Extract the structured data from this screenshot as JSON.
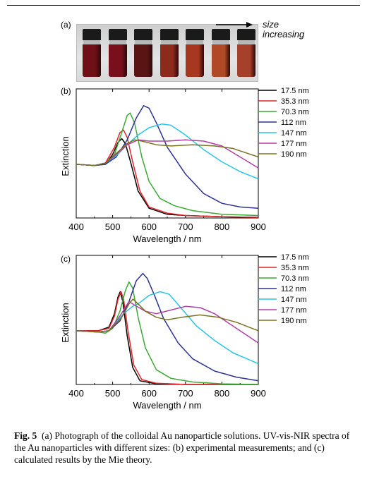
{
  "panels": {
    "a": "(a)",
    "b": "(b)",
    "c": "(c)"
  },
  "photo": {
    "arrow_label_line1": "size",
    "arrow_label_line2": "increasing",
    "vial_colors": [
      "#6e1016",
      "#7a0f1c",
      "#5a1414",
      "#8c2a1c",
      "#a8371f",
      "#b04a26",
      "#a6402a"
    ]
  },
  "caption": {
    "label": "Fig. 5",
    "text": "(a) Photograph of the colloidal Au nanoparticle solutions. UV-vis-NIR spectra of the Au nanoparticles with different sizes: (b) experimental measurements; and (c) calculated results by the Mie theory."
  },
  "chart_data": [
    {
      "type": "line",
      "panel": "b",
      "xlabel": "Wavelength / nm",
      "ylabel": "Extinction",
      "xlim": [
        400,
        900
      ],
      "ylim": [
        0,
        1
      ],
      "xticks": [
        400,
        500,
        600,
        700,
        800,
        900
      ],
      "legend_position": "right",
      "series": [
        {
          "name": "17.5 nm",
          "color": "#000000",
          "points": [
            [
              400,
              0.44
            ],
            [
              450,
              0.43
            ],
            [
              480,
              0.44
            ],
            [
              500,
              0.52
            ],
            [
              515,
              0.62
            ],
            [
              525,
              0.65
            ],
            [
              535,
              0.61
            ],
            [
              550,
              0.45
            ],
            [
              570,
              0.22
            ],
            [
              600,
              0.08
            ],
            [
              650,
              0.03
            ],
            [
              700,
              0.02
            ],
            [
              800,
              0.01
            ],
            [
              900,
              0.005
            ]
          ]
        },
        {
          "name": "35.3 nm",
          "color": "#e3242b",
          "points": [
            [
              400,
              0.44
            ],
            [
              450,
              0.43
            ],
            [
              480,
              0.45
            ],
            [
              505,
              0.58
            ],
            [
              520,
              0.7
            ],
            [
              530,
              0.72
            ],
            [
              540,
              0.66
            ],
            [
              555,
              0.46
            ],
            [
              575,
              0.22
            ],
            [
              600,
              0.09
            ],
            [
              650,
              0.04
            ],
            [
              700,
              0.02
            ],
            [
              800,
              0.01
            ],
            [
              900,
              0.005
            ]
          ]
        },
        {
          "name": "70.3 nm",
          "color": "#3aaa35",
          "points": [
            [
              400,
              0.44
            ],
            [
              450,
              0.43
            ],
            [
              480,
              0.44
            ],
            [
              505,
              0.52
            ],
            [
              525,
              0.7
            ],
            [
              540,
              0.84
            ],
            [
              548,
              0.86
            ],
            [
              560,
              0.78
            ],
            [
              580,
              0.5
            ],
            [
              600,
              0.3
            ],
            [
              630,
              0.16
            ],
            [
              670,
              0.1
            ],
            [
              720,
              0.06
            ],
            [
              800,
              0.03
            ],
            [
              900,
              0.02
            ]
          ]
        },
        {
          "name": "112 nm",
          "color": "#2e3192",
          "points": [
            [
              400,
              0.44
            ],
            [
              450,
              0.43
            ],
            [
              480,
              0.44
            ],
            [
              510,
              0.5
            ],
            [
              540,
              0.64
            ],
            [
              565,
              0.82
            ],
            [
              585,
              0.92
            ],
            [
              600,
              0.9
            ],
            [
              620,
              0.78
            ],
            [
              650,
              0.58
            ],
            [
              700,
              0.36
            ],
            [
              750,
              0.2
            ],
            [
              800,
              0.12
            ],
            [
              850,
              0.09
            ],
            [
              900,
              0.08
            ]
          ]
        },
        {
          "name": "147 nm",
          "color": "#29c5e6",
          "points": [
            [
              400,
              0.44
            ],
            [
              450,
              0.43
            ],
            [
              480,
              0.45
            ],
            [
              510,
              0.51
            ],
            [
              540,
              0.6
            ],
            [
              570,
              0.68
            ],
            [
              600,
              0.74
            ],
            [
              635,
              0.77
            ],
            [
              660,
              0.76
            ],
            [
              700,
              0.68
            ],
            [
              750,
              0.56
            ],
            [
              800,
              0.46
            ],
            [
              850,
              0.38
            ],
            [
              900,
              0.32
            ]
          ]
        },
        {
          "name": "177 nm",
          "color": "#b03fa6",
          "points": [
            [
              400,
              0.44
            ],
            [
              450,
              0.43
            ],
            [
              480,
              0.45
            ],
            [
              510,
              0.52
            ],
            [
              540,
              0.6
            ],
            [
              570,
              0.64
            ],
            [
              600,
              0.63
            ],
            [
              650,
              0.63
            ],
            [
              700,
              0.64
            ],
            [
              750,
              0.63
            ],
            [
              800,
              0.59
            ],
            [
              850,
              0.5
            ],
            [
              900,
              0.41
            ]
          ]
        },
        {
          "name": "190 nm",
          "color": "#7a7220",
          "points": [
            [
              400,
              0.44
            ],
            [
              450,
              0.43
            ],
            [
              480,
              0.45
            ],
            [
              510,
              0.53
            ],
            [
              540,
              0.61
            ],
            [
              560,
              0.64
            ],
            [
              580,
              0.63
            ],
            [
              620,
              0.6
            ],
            [
              660,
              0.59
            ],
            [
              720,
              0.6
            ],
            [
              780,
              0.59
            ],
            [
              830,
              0.57
            ],
            [
              870,
              0.53
            ],
            [
              900,
              0.5
            ]
          ]
        }
      ]
    },
    {
      "type": "line",
      "panel": "c",
      "xlabel": "Wavelength / nm",
      "ylabel": "Extinction",
      "xlim": [
        400,
        900
      ],
      "ylim": [
        0,
        1
      ],
      "xticks": [
        400,
        500,
        600,
        700,
        800,
        900
      ],
      "legend_position": "right",
      "series": [
        {
          "name": "17.5 nm",
          "color": "#000000",
          "points": [
            [
              400,
              0.44
            ],
            [
              460,
              0.44
            ],
            [
              490,
              0.47
            ],
            [
              505,
              0.58
            ],
            [
              515,
              0.72
            ],
            [
              521,
              0.76
            ],
            [
              528,
              0.68
            ],
            [
              540,
              0.4
            ],
            [
              555,
              0.14
            ],
            [
              575,
              0.03
            ],
            [
              620,
              0.005
            ],
            [
              700,
              0.0
            ],
            [
              900,
              0.0
            ]
          ]
        },
        {
          "name": "35.3 nm",
          "color": "#e3242b",
          "points": [
            [
              400,
              0.44
            ],
            [
              460,
              0.44
            ],
            [
              490,
              0.46
            ],
            [
              505,
              0.56
            ],
            [
              515,
              0.7
            ],
            [
              523,
              0.76
            ],
            [
              530,
              0.7
            ],
            [
              542,
              0.44
            ],
            [
              558,
              0.16
            ],
            [
              580,
              0.04
            ],
            [
              620,
              0.01
            ],
            [
              700,
              0.0
            ],
            [
              900,
              0.0
            ]
          ]
        },
        {
          "name": "70.3 nm",
          "color": "#3aaa35",
          "points": [
            [
              400,
              0.44
            ],
            [
              460,
              0.43
            ],
            [
              480,
              0.42
            ],
            [
              500,
              0.46
            ],
            [
              520,
              0.6
            ],
            [
              535,
              0.77
            ],
            [
              545,
              0.84
            ],
            [
              555,
              0.79
            ],
            [
              570,
              0.55
            ],
            [
              590,
              0.3
            ],
            [
              620,
              0.12
            ],
            [
              660,
              0.05
            ],
            [
              720,
              0.02
            ],
            [
              800,
              0.005
            ],
            [
              900,
              0.0
            ]
          ]
        },
        {
          "name": "112 nm",
          "color": "#2e3192",
          "points": [
            [
              400,
              0.44
            ],
            [
              460,
              0.43
            ],
            [
              490,
              0.44
            ],
            [
              520,
              0.52
            ],
            [
              545,
              0.68
            ],
            [
              565,
              0.85
            ],
            [
              583,
              0.91
            ],
            [
              595,
              0.87
            ],
            [
              615,
              0.73
            ],
            [
              640,
              0.54
            ],
            [
              680,
              0.34
            ],
            [
              720,
              0.21
            ],
            [
              780,
              0.11
            ],
            [
              840,
              0.06
            ],
            [
              900,
              0.03
            ]
          ]
        },
        {
          "name": "147 nm",
          "color": "#29c5e6",
          "points": [
            [
              400,
              0.44
            ],
            [
              460,
              0.43
            ],
            [
              490,
              0.44
            ],
            [
              530,
              0.58
            ],
            [
              555,
              0.64
            ],
            [
              570,
              0.66
            ],
            [
              600,
              0.73
            ],
            [
              630,
              0.76
            ],
            [
              655,
              0.74
            ],
            [
              690,
              0.62
            ],
            [
              730,
              0.48
            ],
            [
              780,
              0.36
            ],
            [
              830,
              0.26
            ],
            [
              900,
              0.17
            ]
          ]
        },
        {
          "name": "177 nm",
          "color": "#b03fa6",
          "points": [
            [
              400,
              0.44
            ],
            [
              460,
              0.43
            ],
            [
              490,
              0.44
            ],
            [
              520,
              0.56
            ],
            [
              545,
              0.68
            ],
            [
              560,
              0.65
            ],
            [
              590,
              0.6
            ],
            [
              620,
              0.58
            ],
            [
              660,
              0.61
            ],
            [
              700,
              0.64
            ],
            [
              740,
              0.63
            ],
            [
              780,
              0.58
            ],
            [
              830,
              0.48
            ],
            [
              870,
              0.4
            ],
            [
              900,
              0.34
            ]
          ]
        },
        {
          "name": "190 nm",
          "color": "#7a7220",
          "points": [
            [
              400,
              0.44
            ],
            [
              460,
              0.43
            ],
            [
              490,
              0.44
            ],
            [
              525,
              0.55
            ],
            [
              545,
              0.66
            ],
            [
              556,
              0.7
            ],
            [
              570,
              0.66
            ],
            [
              590,
              0.6
            ],
            [
              620,
              0.55
            ],
            [
              650,
              0.53
            ],
            [
              690,
              0.55
            ],
            [
              740,
              0.57
            ],
            [
              790,
              0.55
            ],
            [
              840,
              0.51
            ],
            [
              900,
              0.44
            ]
          ]
        }
      ]
    }
  ]
}
